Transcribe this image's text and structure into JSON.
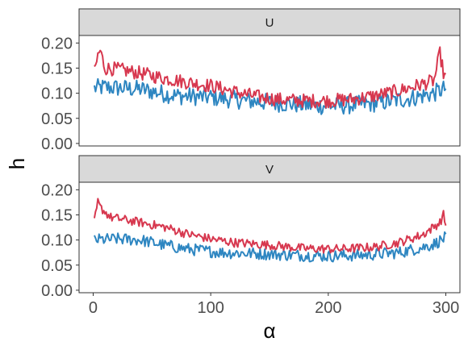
{
  "chart_data": {
    "type": "line",
    "xlabel": "α",
    "ylabel": "h",
    "xlim": [
      -12,
      312
    ],
    "ylim": [
      -0.005,
      0.215
    ],
    "x_ticks": [
      0,
      100,
      200,
      300
    ],
    "y_ticks": [
      0.0,
      0.05,
      0.1,
      0.15,
      0.2
    ],
    "y_tick_labels": [
      "0.00",
      "0.05",
      "0.10",
      "0.15",
      "0.20"
    ],
    "grid": false,
    "legend": "none",
    "x_range": [
      1,
      300
    ],
    "colors": {
      "red": "#D7384F",
      "blue": "#2E86C1",
      "strip_fill": "#d9d9d9",
      "panel_border": "#333333"
    },
    "panels": [
      {
        "strip": "U",
        "series": [
          {
            "color": "#D7384F",
            "anchors": [
              [
                1,
                0.14
              ],
              [
                4,
                0.175
              ],
              [
                6,
                0.185
              ],
              [
                10,
                0.15
              ],
              [
                20,
                0.148
              ],
              [
                40,
                0.14
              ],
              [
                60,
                0.13
              ],
              [
                80,
                0.122
              ],
              [
                100,
                0.115
              ],
              [
                120,
                0.103
              ],
              [
                140,
                0.093
              ],
              [
                160,
                0.087
              ],
              [
                180,
                0.085
              ],
              [
                200,
                0.085
              ],
              [
                220,
                0.088
              ],
              [
                240,
                0.095
              ],
              [
                260,
                0.105
              ],
              [
                280,
                0.118
              ],
              [
                290,
                0.125
              ],
              [
                295,
                0.18
              ],
              [
                298,
                0.14
              ],
              [
                300,
                0.13
              ]
            ],
            "noise": 0.014
          },
          {
            "color": "#2E86C1",
            "anchors": [
              [
                1,
                0.11
              ],
              [
                10,
                0.112
              ],
              [
                40,
                0.108
              ],
              [
                70,
                0.095
              ],
              [
                100,
                0.092
              ],
              [
                130,
                0.085
              ],
              [
                160,
                0.08
              ],
              [
                190,
                0.075
              ],
              [
                210,
                0.075
              ],
              [
                240,
                0.08
              ],
              [
                270,
                0.09
              ],
              [
                290,
                0.1
              ],
              [
                300,
                0.11
              ]
            ],
            "noise": 0.018
          }
        ]
      },
      {
        "strip": "V",
        "series": [
          {
            "color": "#D7384F",
            "anchors": [
              [
                1,
                0.135
              ],
              [
                4,
                0.175
              ],
              [
                6,
                0.165
              ],
              [
                15,
                0.145
              ],
              [
                40,
                0.135
              ],
              [
                62,
                0.125
              ],
              [
                80,
                0.112
              ],
              [
                100,
                0.102
              ],
              [
                120,
                0.095
              ],
              [
                150,
                0.09
              ],
              [
                180,
                0.083
              ],
              [
                210,
                0.082
              ],
              [
                240,
                0.086
              ],
              [
                260,
                0.095
              ],
              [
                280,
                0.11
              ],
              [
                295,
                0.135
              ],
              [
                298,
                0.15
              ],
              [
                300,
                0.13
              ]
            ],
            "noise": 0.009
          },
          {
            "color": "#2E86C1",
            "anchors": [
              [
                1,
                0.1
              ],
              [
                20,
                0.102
              ],
              [
                40,
                0.1
              ],
              [
                60,
                0.09
              ],
              [
                80,
                0.082
              ],
              [
                110,
                0.075
              ],
              [
                140,
                0.073
              ],
              [
                170,
                0.07
              ],
              [
                200,
                0.068
              ],
              [
                230,
                0.07
              ],
              [
                260,
                0.075
              ],
              [
                280,
                0.085
              ],
              [
                290,
                0.092
              ],
              [
                300,
                0.105
              ]
            ],
            "noise": 0.012
          }
        ]
      }
    ]
  }
}
